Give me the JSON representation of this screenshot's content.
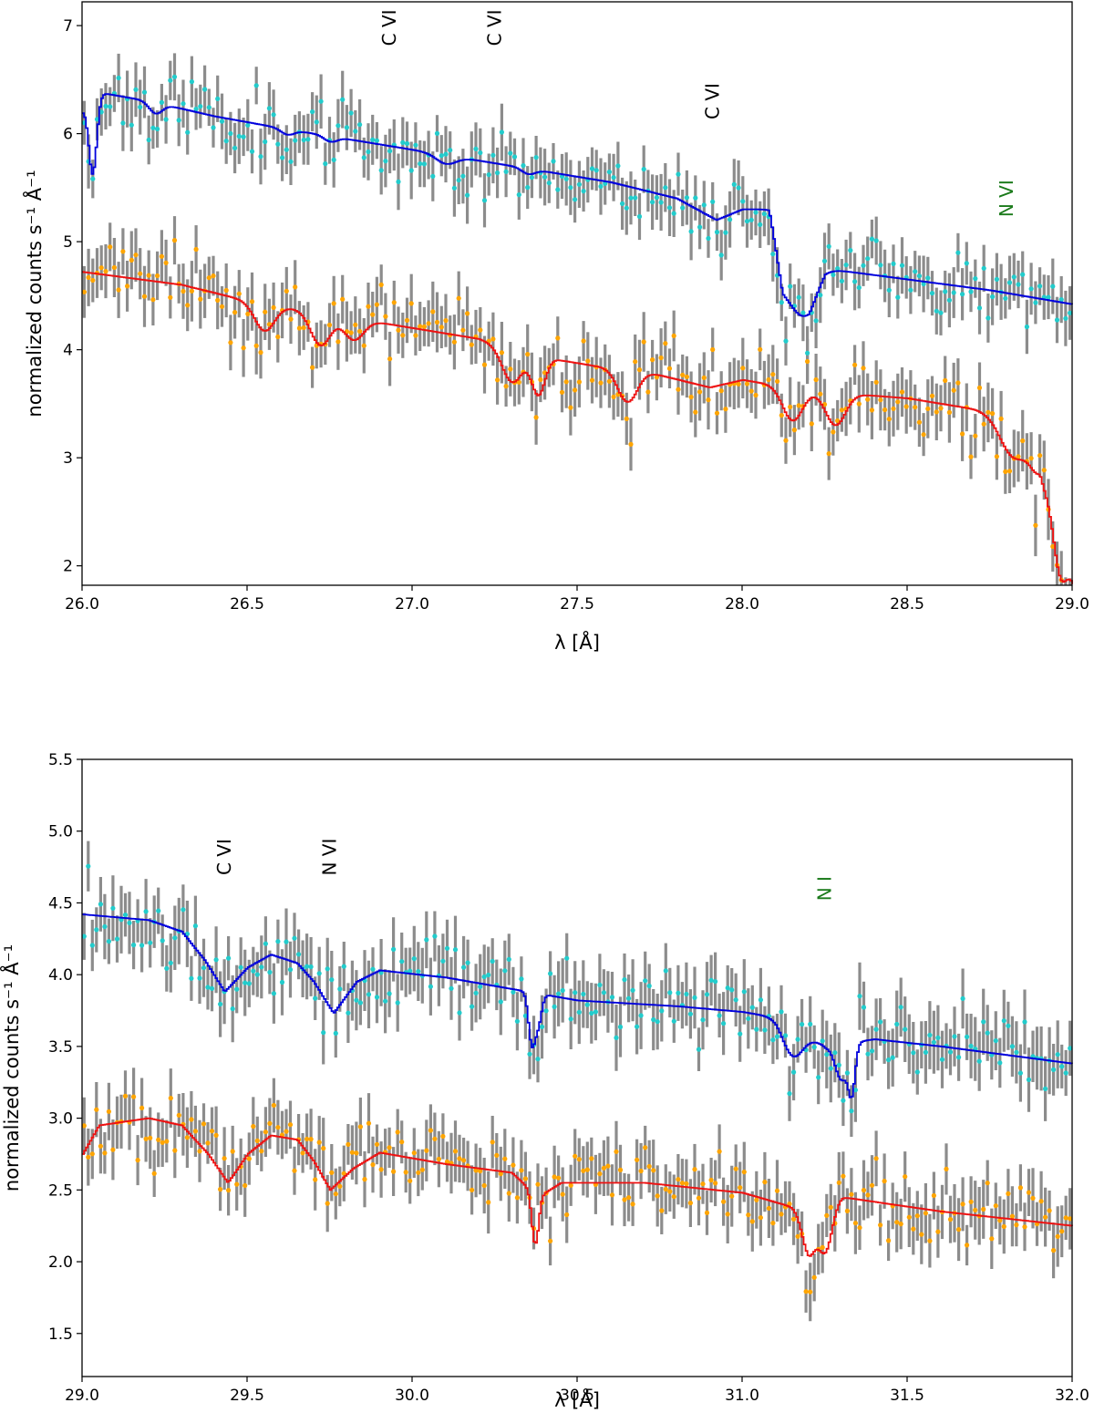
{
  "colors": {
    "upper_model": "#0000dd",
    "lower_model": "#ee1111",
    "upper_points": "#22cccc",
    "lower_points": "#ffa500",
    "errorbar": "#8c8c8c",
    "label_black": "#000000",
    "label_green": "#1a7a1a"
  },
  "chart_data": [
    {
      "type": "scatter",
      "title": "",
      "xlabel": "λ [Å]",
      "ylabel": "normalized counts s⁻¹ Å⁻¹",
      "xlim": [
        26.0,
        29.0
      ],
      "ylim": [
        1.82,
        7.22
      ],
      "xticks": [
        26.0,
        26.5,
        27.0,
        27.5,
        28.0,
        28.5,
        29.0
      ],
      "xtick_labels": [
        "26.0",
        "26.5",
        "27.0",
        "27.5",
        "28.0",
        "28.5",
        "29.0"
      ],
      "yticks": [
        2,
        3,
        4,
        5,
        6,
        7
      ],
      "ytick_labels": [
        "2",
        "3",
        "4",
        "5",
        "6",
        "7"
      ],
      "line_labels": [
        {
          "text": "C VI",
          "x": 26.95,
          "y": 6.98,
          "color": "black"
        },
        {
          "text": "C VI",
          "x": 27.27,
          "y": 6.98,
          "color": "black"
        },
        {
          "text": "C VI",
          "x": 27.93,
          "y": 6.3,
          "color": "black"
        },
        {
          "text": "N VI",
          "x": 28.82,
          "y": 5.4,
          "color": "green"
        }
      ],
      "series": [
        {
          "name": "upper data",
          "color_key": "upper_points",
          "model_color_key": "upper_model",
          "model_knots": [
            [
              26.0,
              6.22
            ],
            [
              26.02,
              6.3
            ],
            [
              26.05,
              6.38
            ],
            [
              26.2,
              6.3
            ],
            [
              26.4,
              6.16
            ],
            [
              26.6,
              6.05
            ],
            [
              26.8,
              5.95
            ],
            [
              27.0,
              5.85
            ],
            [
              27.2,
              5.75
            ],
            [
              27.4,
              5.65
            ],
            [
              27.6,
              5.55
            ],
            [
              27.8,
              5.4
            ],
            [
              27.92,
              5.2
            ],
            [
              28.0,
              5.3
            ],
            [
              28.08,
              5.3
            ],
            [
              28.12,
              4.6
            ],
            [
              28.2,
              4.55
            ],
            [
              28.25,
              4.75
            ],
            [
              28.5,
              4.65
            ],
            [
              28.75,
              4.55
            ],
            [
              29.0,
              4.42
            ]
          ],
          "model_dips": [
            [
              26.03,
              0.7,
              0.012
            ],
            [
              26.22,
              0.1,
              0.02
            ],
            [
              26.62,
              0.05,
              0.02
            ],
            [
              26.75,
              0.05,
              0.02
            ],
            [
              27.1,
              0.08,
              0.03
            ],
            [
              27.35,
              0.05,
              0.02
            ],
            [
              28.18,
              0.25,
              0.04
            ]
          ],
          "scatter": 0.28,
          "n_points": 230,
          "seed": 11
        },
        {
          "name": "lower data",
          "color_key": "lower_points",
          "model_color_key": "lower_model",
          "model_knots": [
            [
              26.0,
              4.72
            ],
            [
              26.3,
              4.6
            ],
            [
              26.5,
              4.45
            ],
            [
              26.9,
              4.25
            ],
            [
              27.2,
              4.1
            ],
            [
              27.35,
              3.95
            ],
            [
              27.55,
              3.85
            ],
            [
              27.7,
              3.8
            ],
            [
              27.9,
              3.65
            ],
            [
              28.0,
              3.72
            ],
            [
              28.2,
              3.62
            ],
            [
              28.5,
              3.55
            ],
            [
              28.7,
              3.45
            ],
            [
              28.9,
              3.3
            ],
            [
              29.0,
              1.9
            ]
          ],
          "model_dips": [
            [
              26.55,
              0.25,
              0.03
            ],
            [
              26.72,
              0.3,
              0.03
            ],
            [
              26.82,
              0.2,
              0.03
            ],
            [
              27.3,
              0.3,
              0.03
            ],
            [
              27.38,
              0.35,
              0.02
            ],
            [
              27.65,
              0.3,
              0.03
            ],
            [
              28.15,
              0.3,
              0.03
            ],
            [
              28.28,
              0.3,
              0.03
            ],
            [
              28.82,
              0.35,
              0.04
            ],
            [
              28.9,
              0.4,
              0.03
            ],
            [
              28.96,
              0.5,
              0.02
            ]
          ],
          "scatter": 0.3,
          "n_points": 230,
          "seed": 23
        }
      ]
    },
    {
      "type": "scatter",
      "title": "",
      "xlabel": "λ [Å]",
      "ylabel": "normalized counts s⁻¹ Å⁻¹",
      "xlim": [
        29.0,
        32.0
      ],
      "ylim": [
        1.2,
        5.5
      ],
      "xticks": [
        29.0,
        29.5,
        30.0,
        30.5,
        31.0,
        31.5,
        32.0
      ],
      "xtick_labels": [
        "29.0",
        "29.5",
        "30.0",
        "30.5",
        "31.0",
        "31.5",
        "32.0"
      ],
      "yticks": [
        1.5,
        2.0,
        2.5,
        3.0,
        3.5,
        4.0,
        4.5,
        5.0,
        5.5
      ],
      "ytick_labels": [
        "1.5",
        "2.0",
        "2.5",
        "3.0",
        "3.5",
        "4.0",
        "4.5",
        "5.0",
        "5.5"
      ],
      "line_labels": [
        {
          "text": "C VI",
          "x": 29.45,
          "y": 4.82,
          "color": "black"
        },
        {
          "text": "N VI",
          "x": 29.77,
          "y": 4.82,
          "color": "black"
        },
        {
          "text": "N I",
          "x": 31.27,
          "y": 4.6,
          "color": "green"
        }
      ],
      "series": [
        {
          "name": "upper data",
          "color_key": "upper_points",
          "model_color_key": "upper_model",
          "model_knots": [
            [
              29.0,
              4.42
            ],
            [
              29.2,
              4.38
            ],
            [
              29.3,
              4.3
            ],
            [
              29.37,
              4.1
            ],
            [
              29.43,
              3.88
            ],
            [
              29.5,
              4.05
            ],
            [
              29.57,
              4.14
            ],
            [
              29.65,
              4.08
            ],
            [
              29.7,
              3.95
            ],
            [
              29.76,
              3.73
            ],
            [
              29.83,
              3.95
            ],
            [
              29.9,
              4.03
            ],
            [
              30.1,
              3.98
            ],
            [
              30.3,
              3.9
            ],
            [
              30.5,
              3.82
            ],
            [
              30.8,
              3.78
            ],
            [
              31.0,
              3.74
            ],
            [
              31.1,
              3.7
            ],
            [
              31.25,
              3.5
            ],
            [
              31.4,
              3.55
            ],
            [
              31.6,
              3.5
            ],
            [
              32.0,
              3.38
            ]
          ],
          "model_dips": [
            [
              30.36,
              0.35,
              0.01
            ],
            [
              30.38,
              0.2,
              0.01
            ],
            [
              31.15,
              0.2,
              0.03
            ],
            [
              31.3,
              0.25,
              0.02
            ],
            [
              31.33,
              0.3,
              0.01
            ]
          ],
          "scatter": 0.25,
          "n_points": 240,
          "seed": 37
        },
        {
          "name": "lower data",
          "color_key": "lower_points",
          "model_color_key": "lower_model",
          "model_knots": [
            [
              29.0,
              2.75
            ],
            [
              29.05,
              2.95
            ],
            [
              29.2,
              3.0
            ],
            [
              29.3,
              2.95
            ],
            [
              29.38,
              2.75
            ],
            [
              29.44,
              2.55
            ],
            [
              29.5,
              2.75
            ],
            [
              29.57,
              2.88
            ],
            [
              29.65,
              2.85
            ],
            [
              29.7,
              2.7
            ],
            [
              29.75,
              2.5
            ],
            [
              29.82,
              2.65
            ],
            [
              29.9,
              2.76
            ],
            [
              30.1,
              2.68
            ],
            [
              30.3,
              2.62
            ],
            [
              30.38,
              2.45
            ],
            [
              30.45,
              2.55
            ],
            [
              30.7,
              2.55
            ],
            [
              31.0,
              2.48
            ],
            [
              31.15,
              2.38
            ],
            [
              31.2,
              2.3
            ],
            [
              31.3,
              2.45
            ],
            [
              31.6,
              2.35
            ],
            [
              32.0,
              2.25
            ]
          ],
          "model_dips": [
            [
              30.37,
              0.35,
              0.01
            ],
            [
              31.2,
              0.25,
              0.02
            ],
            [
              31.25,
              0.3,
              0.02
            ]
          ],
          "scatter": 0.23,
          "n_points": 240,
          "seed": 51
        }
      ]
    }
  ]
}
